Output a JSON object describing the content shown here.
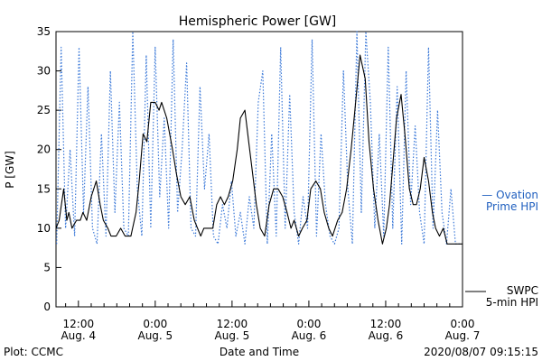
{
  "chart_data": {
    "type": "line",
    "title": "Hemispheric Power [GW]",
    "xlabel": "Date and Time",
    "ylabel": "P [GW]",
    "ylim": [
      0,
      35
    ],
    "yticks": [
      0,
      5,
      10,
      15,
      20,
      25,
      30,
      35
    ],
    "xlim": [
      8.5,
      72.0
    ],
    "x_unit": "hours since 2020-08-04 00:00 UTC",
    "xticks": [
      {
        "x": 12,
        "line1": "12:00",
        "line2": "Aug. 4"
      },
      {
        "x": 24,
        "line1": "0:00",
        "line2": "Aug. 5"
      },
      {
        "x": 36,
        "line1": "12:00",
        "line2": "Aug. 5"
      },
      {
        "x": 48,
        "line1": "0:00",
        "line2": "Aug. 6"
      },
      {
        "x": 60,
        "line1": "12:00",
        "line2": "Aug. 6"
      },
      {
        "x": 72,
        "line1": "0:00",
        "line2": "Aug. 7"
      }
    ],
    "series": [
      {
        "name": "Ovation Prime HPI",
        "legend_line1": "— Ovation",
        "legend_line2": "Prime HPI",
        "color": "#3a78d8",
        "style": "dotted",
        "x": [
          8.6,
          9.3,
          10,
          10.7,
          11.4,
          12.1,
          12.8,
          13.5,
          14.2,
          14.9,
          15.6,
          16.3,
          17,
          17.7,
          18.4,
          19.1,
          19.8,
          20.5,
          21.2,
          21.9,
          22.6,
          23.3,
          24,
          24.7,
          25.4,
          26.1,
          26.8,
          27.5,
          28.2,
          28.9,
          29.6,
          30.3,
          31,
          31.7,
          32.4,
          33.1,
          33.8,
          34.5,
          35.2,
          35.9,
          36.6,
          37.3,
          38,
          38.7,
          39.4,
          40.1,
          40.8,
          41.5,
          42.2,
          42.9,
          43.6,
          44.3,
          45,
          45.7,
          46.4,
          47.1,
          47.8,
          48.5,
          49.2,
          49.9,
          50.6,
          51.3,
          52,
          52.7,
          53.4,
          54.1,
          54.8,
          55.5,
          56.2,
          56.9,
          57.6,
          58.3,
          59,
          59.7,
          60.4,
          61.1,
          61.8,
          62.5,
          63.2,
          63.9,
          64.6,
          65.3,
          66,
          66.7,
          67.4,
          68.1,
          68.8,
          69.5,
          70.2,
          70.9,
          71.6
        ],
        "values": [
          8,
          33,
          10,
          20,
          9,
          33,
          12,
          28,
          10,
          8,
          22,
          9,
          30,
          12,
          26,
          10,
          9,
          35,
          15,
          9,
          32,
          10,
          33,
          14,
          24,
          10,
          34,
          12,
          20,
          31,
          10,
          9,
          28,
          15,
          22,
          9,
          8,
          13,
          10,
          16,
          9,
          12,
          8,
          14,
          10,
          26,
          30,
          8,
          22,
          9,
          33,
          10,
          27,
          12,
          8,
          14,
          10,
          34,
          9,
          22,
          13,
          9,
          8,
          10,
          30,
          15,
          8,
          35,
          12,
          35,
          26,
          10,
          22,
          9,
          33,
          10,
          28,
          8,
          30,
          13,
          23,
          12,
          8,
          33,
          10,
          25,
          12,
          8,
          15,
          8,
          8
        ]
      },
      {
        "name": "SWPC 5-min HPI",
        "legend_line1": "SWPC",
        "legend_line2": "5-min HPI",
        "color": "#000000",
        "style": "solid",
        "x": [
          8.5,
          9.0,
          9.7,
          10.2,
          10.5,
          11.0,
          11.7,
          12.3,
          12.7,
          13.3,
          14.0,
          14.8,
          15.4,
          15.9,
          16.6,
          17.1,
          17.9,
          18.6,
          19.3,
          20.2,
          21.0,
          21.5,
          22.1,
          22.7,
          23.3,
          24.0,
          24.6,
          25.0,
          25.8,
          26.7,
          27.3,
          28.0,
          28.7,
          29.4,
          30.1,
          31.1,
          31.6,
          32.1,
          32.6,
          33.0,
          33.6,
          34.2,
          34.8,
          35.4,
          36.1,
          36.8,
          37.3,
          38.0,
          38.6,
          39.2,
          39.8,
          40.4,
          41.1,
          41.8,
          42.5,
          43.2,
          43.9,
          44.6,
          45.2,
          45.7,
          46.4,
          47.0,
          47.7,
          48.3,
          49.1,
          49.8,
          50.4,
          51.1,
          51.7,
          52.5,
          53.2,
          53.9,
          54.6,
          55.3,
          56.0,
          56.8,
          57.4,
          58.1,
          58.8,
          59.5,
          60.1,
          60.6,
          61.1,
          61.7,
          62.4,
          63.0,
          63.7,
          64.3,
          64.8,
          65.4,
          66.0,
          66.7,
          67.3,
          67.8,
          68.4,
          69.0,
          69.6,
          70.1,
          70.7,
          71.3,
          71.8,
          72.0
        ],
        "values": [
          10,
          11,
          15,
          11,
          12,
          10,
          11,
          11,
          12,
          11,
          14,
          16,
          13,
          11,
          10,
          9,
          9,
          10,
          9,
          9,
          12,
          16,
          22,
          21,
          26,
          26,
          25,
          26,
          24,
          20,
          17,
          14,
          13,
          14,
          11,
          9,
          10,
          10,
          10,
          10,
          13,
          14,
          13,
          14,
          16,
          20,
          24,
          25,
          21,
          17,
          13,
          10,
          9,
          13,
          15,
          15,
          14,
          12,
          10,
          11,
          9,
          10,
          11,
          15,
          16,
          15,
          12,
          10,
          9,
          11,
          12,
          15,
          20,
          26,
          32,
          29,
          21,
          15,
          11,
          8,
          10,
          13,
          18,
          24,
          27,
          22,
          15,
          13,
          13,
          15,
          19,
          16,
          12,
          10,
          9,
          10,
          8,
          8,
          8,
          8,
          8,
          8
        ]
      }
    ],
    "annotations": {
      "bottom_left": "Plot: CCMC",
      "bottom_right": "2020/08/07 09:15:15"
    },
    "grid": false,
    "legend_placement": "right"
  }
}
